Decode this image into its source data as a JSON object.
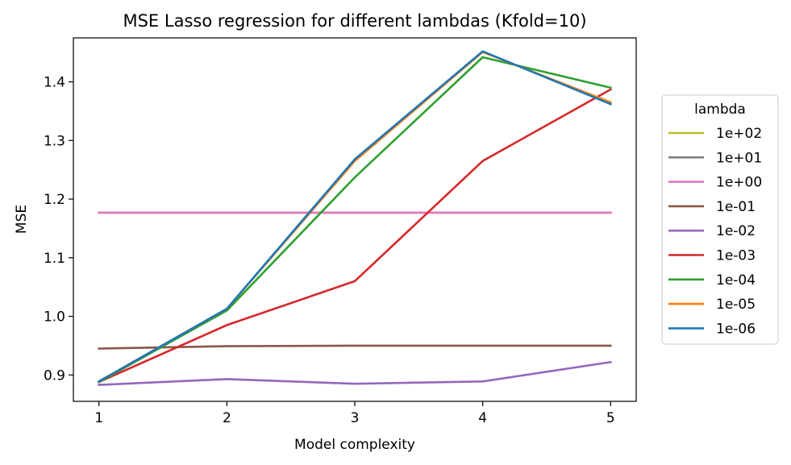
{
  "chart_data": {
    "type": "line",
    "title": "MSE Lasso regression for different lambdas (Kfold=10)",
    "xlabel": "Model complexity",
    "ylabel": "MSE",
    "x": [
      1,
      2,
      3,
      4,
      5
    ],
    "xlim": [
      0.8,
      5.2
    ],
    "ylim": [
      0.855,
      1.475
    ],
    "xticks": [
      "1",
      "2",
      "3",
      "4",
      "5"
    ],
    "yticks": [
      "0.9",
      "1.0",
      "1.1",
      "1.2",
      "1.3",
      "1.4"
    ],
    "ytick_values": [
      0.9,
      1.0,
      1.1,
      1.2,
      1.3,
      1.4
    ],
    "grid": false,
    "legend": {
      "title": "lambda",
      "placement": "center-right outside"
    },
    "series": [
      {
        "name": "1e+02",
        "color": "#bcbd22",
        "values": [
          1.177,
          1.177,
          1.177,
          1.177,
          1.177
        ]
      },
      {
        "name": "1e+01",
        "color": "#7f7f7f",
        "values": [
          1.177,
          1.177,
          1.177,
          1.177,
          1.177
        ]
      },
      {
        "name": "1e+00",
        "color": "#e377c2",
        "values": [
          1.177,
          1.177,
          1.177,
          1.177,
          1.177
        ]
      },
      {
        "name": "1e-01",
        "color": "#8c564b",
        "values": [
          0.945,
          0.949,
          0.95,
          0.95,
          0.95
        ]
      },
      {
        "name": "1e-02",
        "color": "#9467bd",
        "values": [
          0.883,
          0.893,
          0.885,
          0.889,
          0.922
        ]
      },
      {
        "name": "1e-03",
        "color": "#d62728",
        "values": [
          0.888,
          0.985,
          1.06,
          1.265,
          1.387
        ]
      },
      {
        "name": "1e-04",
        "color": "#2ca02c",
        "values": [
          0.888,
          1.01,
          1.237,
          1.442,
          1.39
        ]
      },
      {
        "name": "1e-05",
        "color": "#ff7f0e",
        "values": [
          0.889,
          1.013,
          1.265,
          1.451,
          1.365
        ]
      },
      {
        "name": "1e-06",
        "color": "#1f77b4",
        "values": [
          0.889,
          1.013,
          1.268,
          1.452,
          1.362
        ]
      }
    ]
  }
}
